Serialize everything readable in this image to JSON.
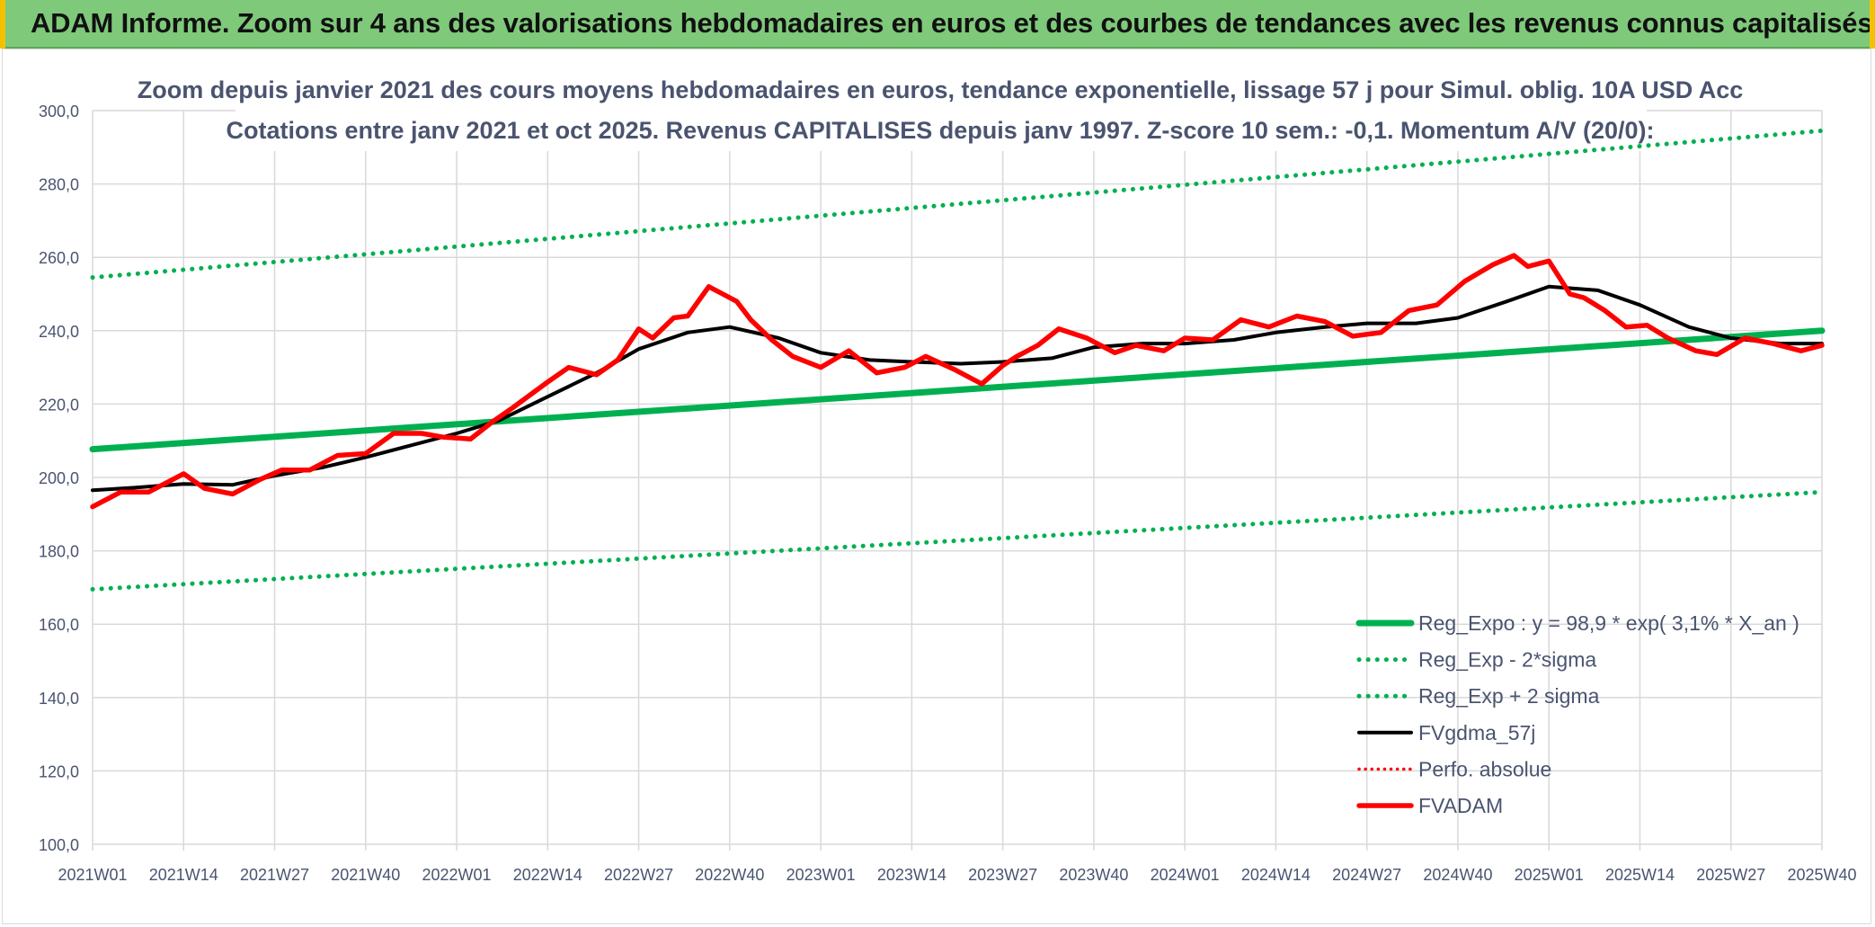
{
  "banner": {
    "title": "ADAM Informe. Zoom sur 4 ans des valorisations hebdomadaires en euros et des courbes de tendances avec les revenus connus capitalisés"
  },
  "colors": {
    "banner_bg": "#7fc97a",
    "trend_green": "#00b050",
    "ma_black": "#000000",
    "price_red": "#ff0000",
    "grid": "#d9d9d9",
    "text": "#4a5470"
  },
  "chart_data": {
    "type": "line",
    "title_lines": [
      "Zoom depuis janvier 2021 des cours moyens hebdomadaires en euros, tendance exponentielle, lissage 57 j pour Simul. oblig. 10A USD Acc",
      "Cotations entre janv 2021 et oct 2025. Revenus CAPITALISES depuis janv 1997. Z-score 10 sem.: -0,1. Momentum A/V (20/0):"
    ],
    "x_tick_labels": [
      "2021W01",
      "2021W14",
      "2021W27",
      "2021W40",
      "2022W01",
      "2022W14",
      "2022W27",
      "2022W40",
      "2023W01",
      "2023W14",
      "2023W27",
      "2023W40",
      "2024W01",
      "2024W14",
      "2024W27",
      "2024W40",
      "2025W01",
      "2025W14",
      "2025W27",
      "2025W40"
    ],
    "x_range": [
      0,
      247
    ],
    "ylim": [
      100,
      300
    ],
    "y_ticks": [
      100,
      120,
      140,
      160,
      180,
      200,
      220,
      240,
      260,
      280,
      300
    ],
    "y_tick_labels": [
      "100,0",
      "120,0",
      "140,0",
      "160,0",
      "180,0",
      "200,0",
      "220,0",
      "240,0",
      "260,0",
      "280,0",
      "300,0"
    ],
    "grid": true,
    "legend_position": "bottom-right",
    "series": [
      {
        "name": "Reg_Expo : y = 98,9 * exp( 3,1% *  X_an )",
        "style": "solid-thick",
        "color": "#00b050",
        "x": [
          0,
          247
        ],
        "values": [
          207.7,
          240.0
        ]
      },
      {
        "name": "Reg_Exp - 2*sigma",
        "style": "dotted",
        "color": "#00b050",
        "x": [
          0,
          247
        ],
        "values": [
          169.5,
          196.0
        ]
      },
      {
        "name": "Reg_Exp + 2 sigma",
        "style": "dotted",
        "color": "#00b050",
        "x": [
          0,
          247
        ],
        "values": [
          254.5,
          294.5
        ]
      },
      {
        "name": "FVgdma_57j",
        "style": "solid",
        "color": "#000000",
        "x": [
          0,
          6,
          13,
          20,
          26,
          33,
          39,
          45,
          52,
          58,
          65,
          72,
          78,
          85,
          91,
          98,
          104,
          111,
          117,
          124,
          130,
          137,
          143,
          150,
          156,
          163,
          169,
          176,
          182,
          189,
          195,
          202,
          208,
          215,
          221,
          228,
          234,
          241,
          247
        ],
        "values": [
          196.5,
          197.2,
          198.2,
          198.0,
          200.5,
          202.8,
          205.5,
          208.5,
          212.0,
          215.5,
          222.0,
          228.5,
          235.0,
          239.5,
          241.0,
          238.0,
          234.0,
          232.0,
          231.5,
          231.0,
          231.5,
          232.5,
          235.5,
          236.5,
          236.5,
          237.5,
          239.5,
          241.0,
          242.0,
          242.0,
          243.5,
          248.0,
          252.0,
          251.0,
          247.0,
          241.0,
          238.0,
          236.5,
          236.5
        ]
      },
      {
        "name": "Perfo. absolue",
        "style": "dotted",
        "color": "#ff0000",
        "x": [],
        "values": []
      },
      {
        "name": "FVADAM",
        "style": "solid-thick",
        "color": "#ff0000",
        "x": [
          0,
          4,
          8,
          13,
          16,
          20,
          24,
          27,
          31,
          35,
          39,
          43,
          47,
          50,
          54,
          57,
          60,
          65,
          68,
          72,
          75,
          78,
          80,
          83,
          85,
          88,
          90,
          92,
          94,
          97,
          100,
          104,
          108,
          112,
          116,
          119,
          123,
          127,
          130,
          132,
          135,
          138,
          142,
          146,
          149,
          153,
          156,
          160,
          164,
          168,
          172,
          176,
          180,
          184,
          188,
          192,
          196,
          200,
          203,
          205,
          208,
          211,
          213,
          216,
          219,
          222,
          225,
          229,
          232,
          236,
          240,
          244,
          247
        ],
        "values": [
          192.0,
          196.0,
          196.0,
          201.0,
          197.0,
          195.5,
          199.5,
          202.0,
          202.0,
          206.0,
          206.5,
          212.0,
          212.0,
          211.0,
          210.5,
          215.0,
          219.0,
          226.0,
          230.0,
          228.0,
          232.0,
          240.5,
          238.0,
          243.5,
          244.0,
          252.0,
          250.0,
          248.0,
          243.0,
          237.5,
          233.0,
          230.0,
          234.5,
          228.5,
          230.0,
          233.0,
          229.5,
          225.5,
          230.5,
          233.0,
          236.0,
          240.5,
          238.0,
          234.0,
          236.0,
          234.5,
          238.0,
          237.5,
          243.0,
          241.0,
          244.0,
          242.5,
          238.5,
          239.5,
          245.5,
          247.0,
          253.5,
          258.0,
          260.5,
          257.5,
          259.0,
          250.0,
          249.0,
          245.5,
          241.0,
          241.5,
          238.0,
          234.5,
          233.5,
          238.0,
          236.5,
          234.5,
          236.0
        ]
      }
    ]
  }
}
